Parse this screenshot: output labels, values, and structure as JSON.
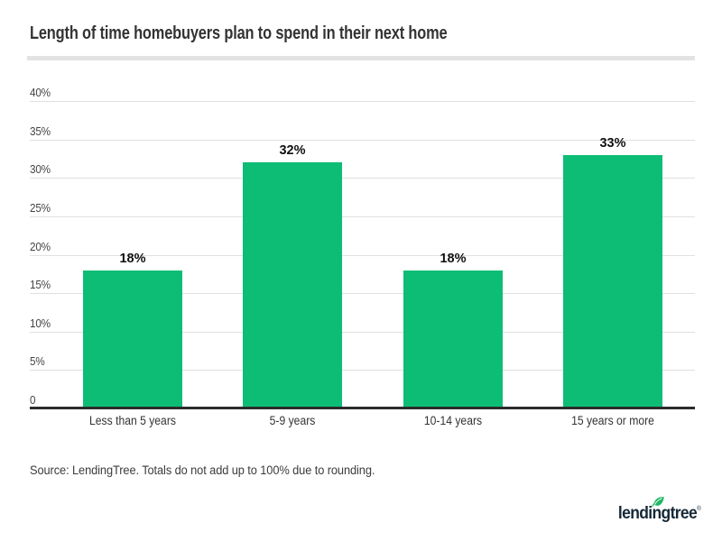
{
  "title": "Length of time homebuyers plan to spend in their next home",
  "source_note": "Source: LendingTree. Totals do not add up to 100% due to rounding.",
  "logo": {
    "text": "lendingtree",
    "registered_mark": "®"
  },
  "colors": {
    "bar_green": "#0dbd75",
    "gridline": "#e0e0e0",
    "axis_line": "#2b2b2b",
    "divider": "#e3e3e3",
    "title_text": "#333333",
    "tick_text": "#444444",
    "value_label_text": "#111111",
    "source_text": "#3c3c3c",
    "logo_navy": "#152837",
    "leaf_green": "#21b766"
  },
  "chart_data": {
    "type": "bar",
    "title": "Length of time homebuyers plan to spend in their next home",
    "categories": [
      "Less than 5 years",
      "5-9 years",
      "10-14 years",
      "15 years or more"
    ],
    "values": [
      18,
      32,
      18,
      33
    ],
    "value_labels": [
      "18%",
      "32%",
      "18%",
      "33%"
    ],
    "xlabel": "",
    "ylabel": "",
    "ylim": [
      0,
      40
    ],
    "yticks": [
      0,
      5,
      10,
      15,
      20,
      25,
      30,
      35,
      40
    ],
    "ytick_labels": [
      "0",
      "5%",
      "10%",
      "15%",
      "20%",
      "25%",
      "30%",
      "35%",
      "40%"
    ],
    "grid": true,
    "legend": false,
    "bar_color": "#0dbd75"
  }
}
